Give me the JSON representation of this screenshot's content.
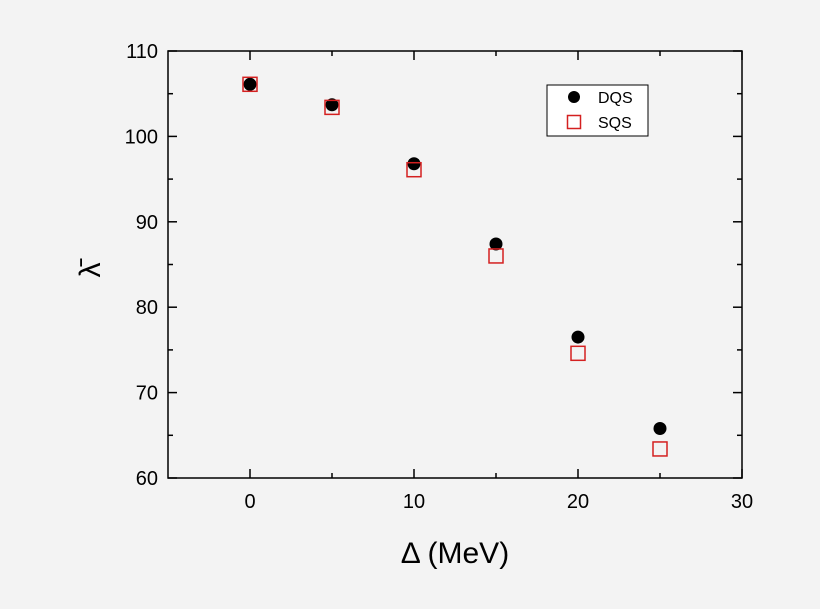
{
  "chart_data": {
    "type": "scatter",
    "xlabel": "Δ (MeV)",
    "ylabel": "λ̄",
    "xlim": [
      -5,
      30
    ],
    "ylim": [
      60,
      110
    ],
    "xticks": [
      0,
      10,
      20,
      30
    ],
    "yticks": [
      60,
      70,
      80,
      90,
      100,
      110
    ],
    "grid": false,
    "legend_position": "top-right",
    "series": [
      {
        "name": "DQS",
        "marker": "filled-circle",
        "color": "#000000",
        "x": [
          0,
          5,
          10,
          15,
          20,
          25
        ],
        "y": [
          106.1,
          103.7,
          96.8,
          87.4,
          76.5,
          65.8
        ]
      },
      {
        "name": "SQS",
        "marker": "open-square",
        "color": "#d42020",
        "x": [
          0,
          5,
          10,
          15,
          20,
          25
        ],
        "y": [
          106.1,
          103.4,
          96.1,
          86.0,
          74.6,
          63.4
        ]
      }
    ]
  }
}
